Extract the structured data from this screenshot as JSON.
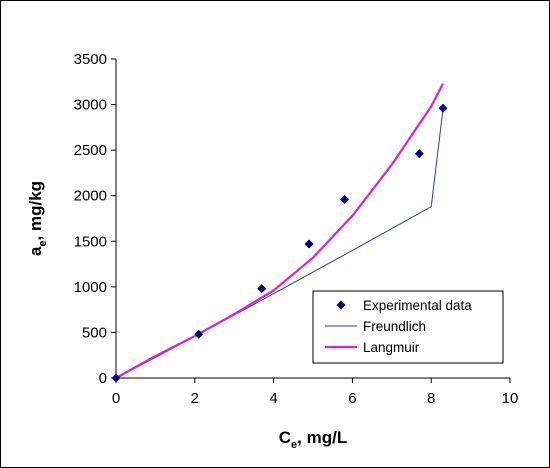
{
  "chart_data": {
    "type": "scatter",
    "xlabel": {
      "main": "C",
      "sub": "e",
      "rest": ", mg/L"
    },
    "ylabel": {
      "main": "a",
      "sub": "e",
      "rest": ", mg/kg"
    },
    "xlim": [
      0,
      10
    ],
    "ylim": [
      0,
      3500
    ],
    "xticks": [
      0,
      2,
      4,
      6,
      8,
      10
    ],
    "yticks": [
      0,
      500,
      1000,
      1500,
      2000,
      2500,
      3000,
      3500
    ],
    "grid": false,
    "legend_position": "bottom-right",
    "series": [
      {
        "name": "Experimental data",
        "kind": "markers",
        "marker": "diamond",
        "color": "#000080",
        "x": [
          0,
          2.1,
          3.7,
          4.9,
          5.8,
          7.7,
          8.3
        ],
        "y": [
          0,
          480,
          980,
          1470,
          1960,
          2460,
          2960
        ]
      },
      {
        "name": "Freundlich",
        "kind": "line",
        "color": "#3a3a9a",
        "x": [
          0,
          1,
          2,
          3,
          4,
          5,
          6,
          7,
          8,
          8.3
        ],
        "y": [
          0,
          225,
          456,
          690,
          925,
          1162,
          1400,
          1640,
          1880,
          2952
        ]
      },
      {
        "name": "Langmuir",
        "kind": "line",
        "color": "#e020d0",
        "x": [
          0,
          1,
          2,
          3,
          4,
          5,
          6,
          7,
          8,
          8.3
        ],
        "y": [
          0,
          240,
          460,
          700,
          960,
          1320,
          1780,
          2340,
          2980,
          3230
        ]
      }
    ]
  }
}
